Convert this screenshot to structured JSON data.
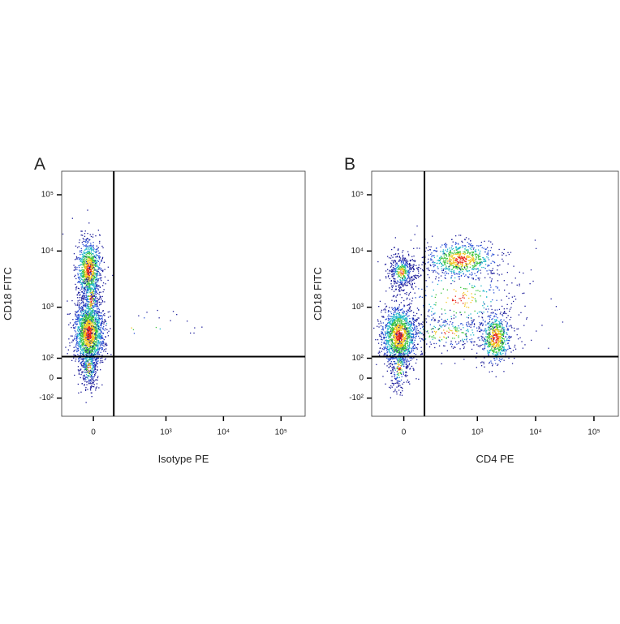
{
  "chart_data": [
    {
      "type": "scatter",
      "panel": "A",
      "x_label": "Isotype PE",
      "y_label": "CD18 FITC",
      "scale": "logicle",
      "xlim": [
        -180,
        262144
      ],
      "ylim": [
        -250,
        262144
      ],
      "xticks": [
        0,
        {
          "value": 1000,
          "label": "10³"
        },
        {
          "value": 10000,
          "label": "10⁴"
        },
        {
          "value": 100000,
          "label": "10⁵"
        }
      ],
      "yticks": [
        {
          "value": 100000,
          "label": "10⁵"
        },
        {
          "value": 10000,
          "label": "10⁴"
        },
        {
          "value": 1000,
          "label": "10³"
        },
        {
          "value": 100,
          "label": "10²"
        },
        0,
        {
          "value": -100,
          "label": "-10²"
        }
      ],
      "gates": {
        "x": 100,
        "y": 110
      }
    },
    {
      "type": "scatter",
      "panel": "B",
      "x_label": "CD4 PE",
      "y_label": "CD18 FITC",
      "scale": "logicle",
      "xlim": [
        -180,
        262144
      ],
      "ylim": [
        -250,
        262144
      ],
      "xticks": [
        0,
        {
          "value": 1000,
          "label": "10³"
        },
        {
          "value": 10000,
          "label": "10⁴"
        },
        {
          "value": 100000,
          "label": "10⁵"
        }
      ],
      "yticks": [
        {
          "value": 100000,
          "label": "10⁵"
        },
        {
          "value": 10000,
          "label": "10⁴"
        },
        {
          "value": 1000,
          "label": "10³"
        },
        {
          "value": 100,
          "label": "10²"
        },
        0,
        {
          "value": -100,
          "label": "-10²"
        }
      ],
      "gates": {
        "x": 100,
        "y": 110
      }
    }
  ]
}
